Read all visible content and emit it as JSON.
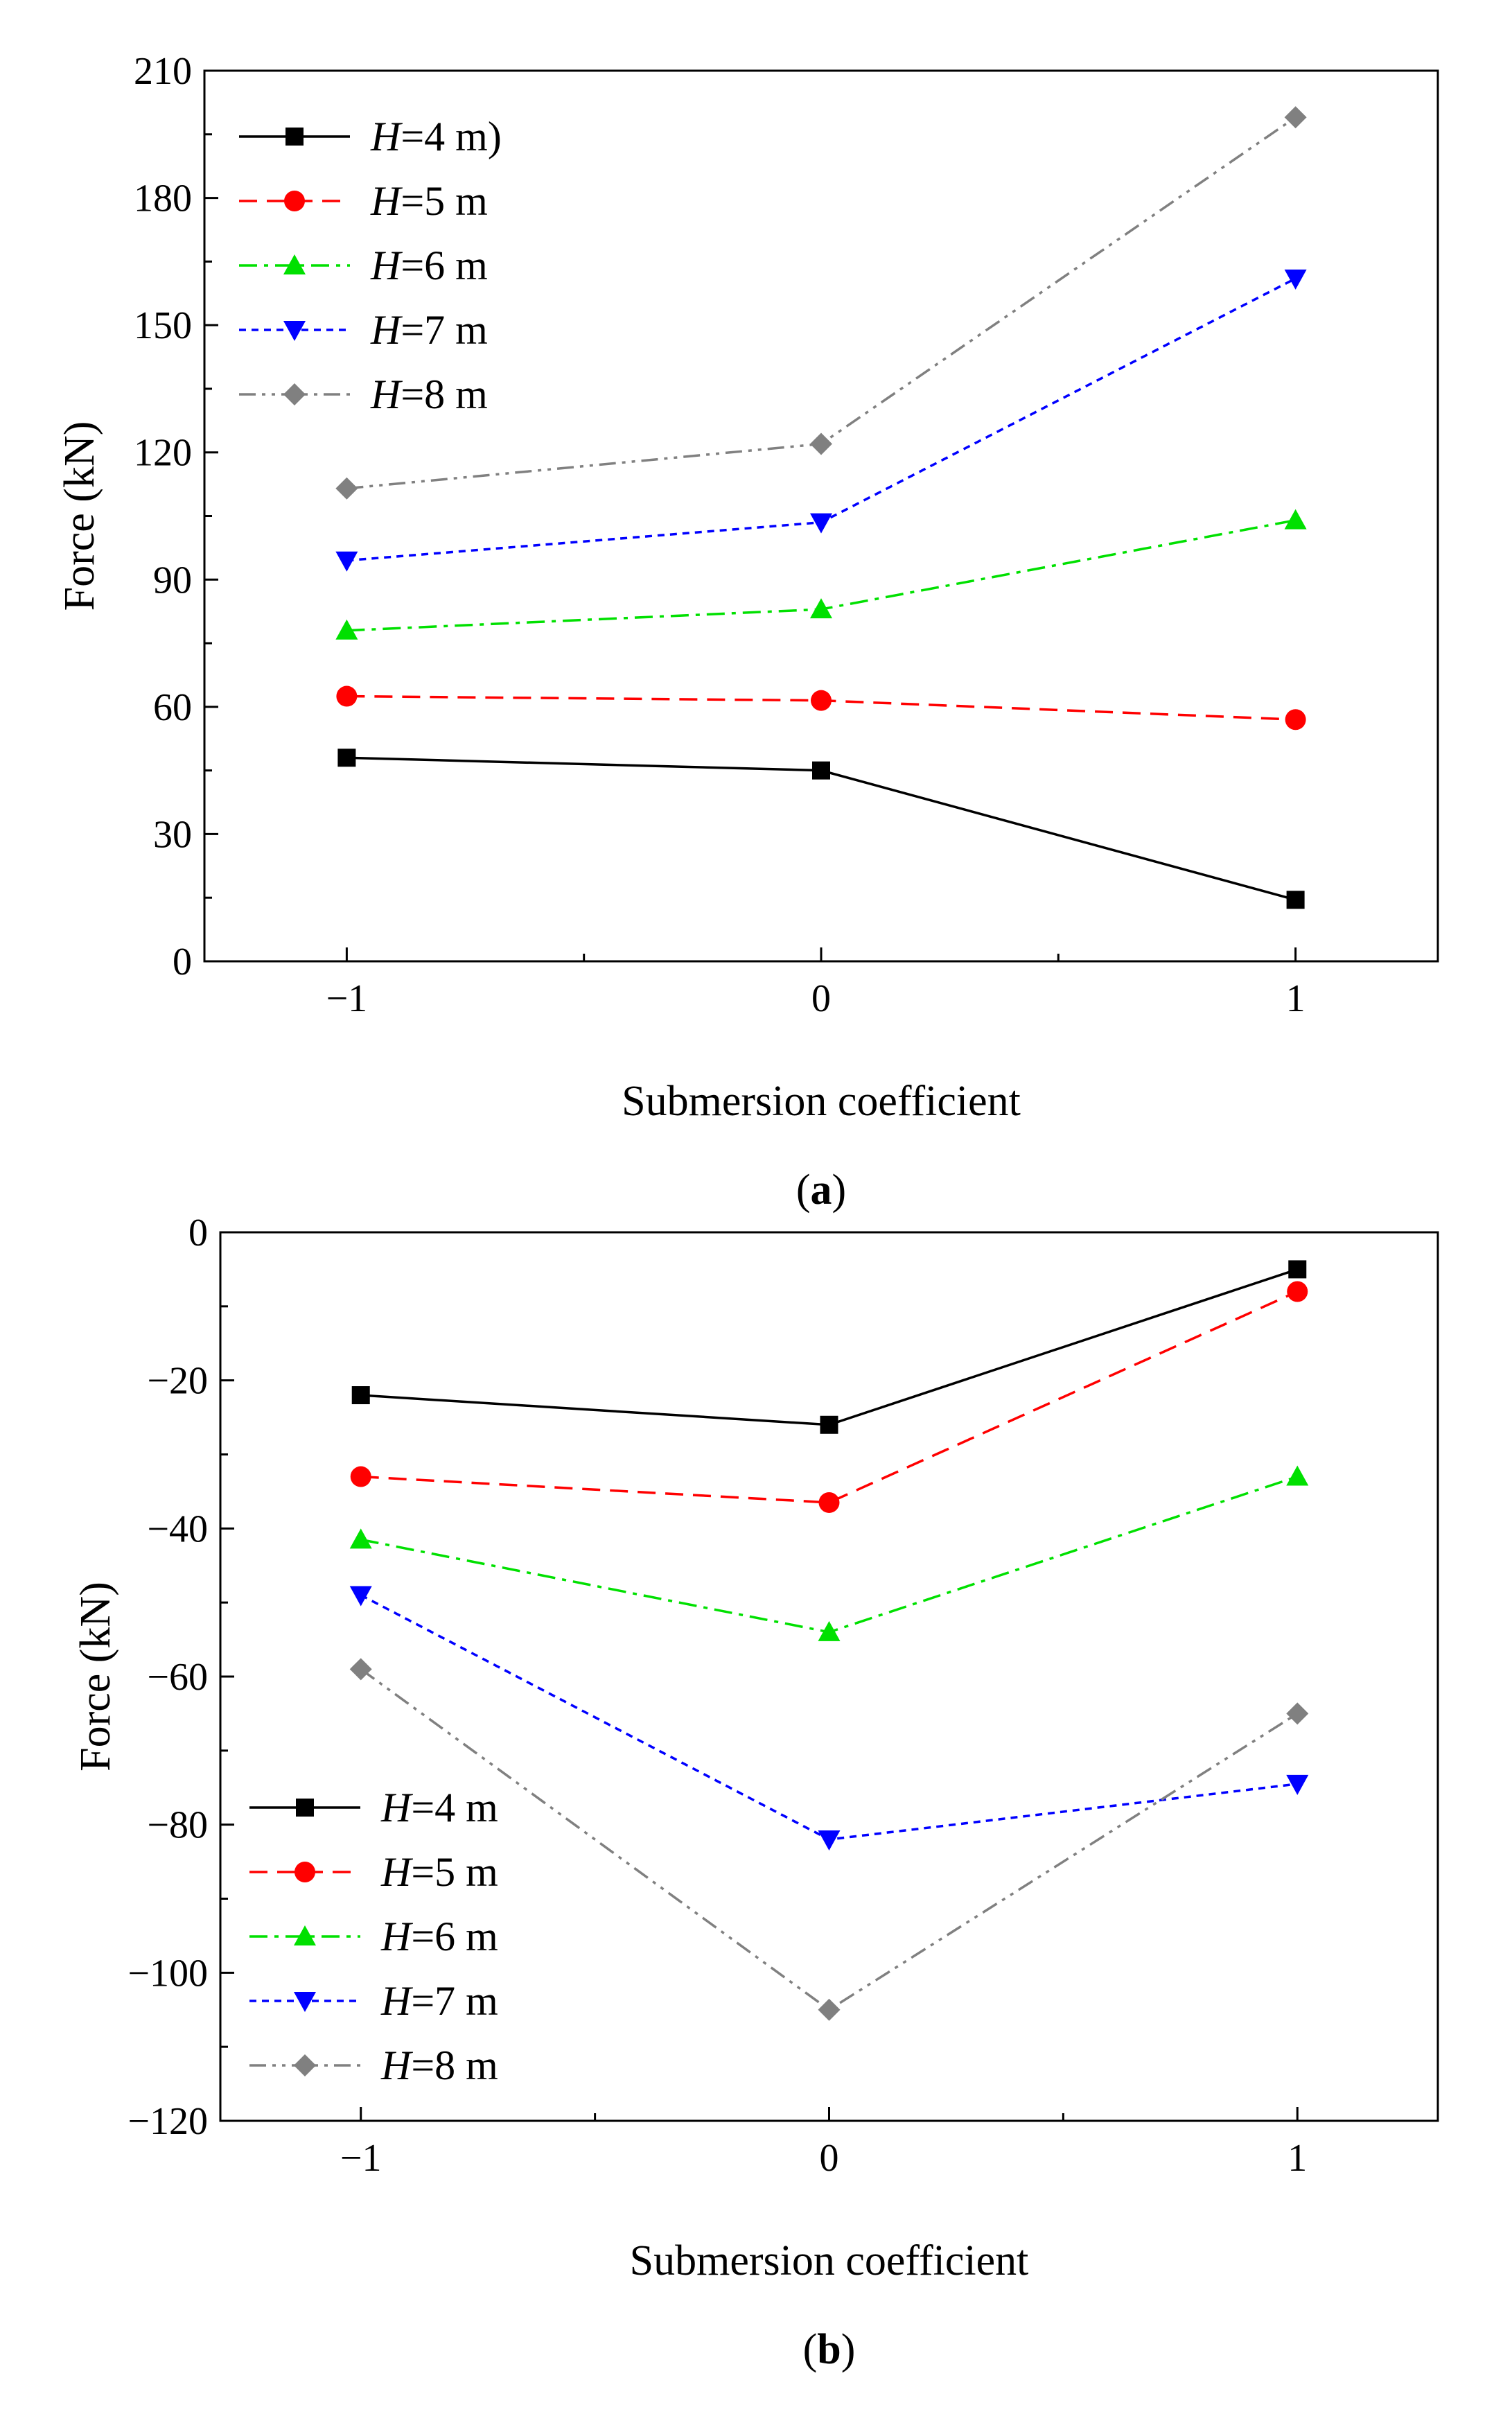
{
  "chart_data": [
    {
      "type": "line",
      "panel_label": "a",
      "xlabel": "Submersion coefficient",
      "ylabel": "Force (kN)",
      "x": [
        -1,
        0,
        1
      ],
      "xticks": [
        -1,
        0,
        1
      ],
      "xtick_labels": [
        "−1",
        "0",
        "1"
      ],
      "xlim": [
        -1.3,
        1.3
      ],
      "ylim": [
        0,
        210
      ],
      "yticks": [
        0,
        30,
        60,
        90,
        120,
        150,
        180,
        210
      ],
      "ytick_labels": [
        "0",
        "30",
        "60",
        "90",
        "120",
        "150",
        "180",
        "210"
      ],
      "grid": false,
      "legend_position": "top-left",
      "series": [
        {
          "name_italic": "H",
          "name_rest": "=4 m)",
          "color": "#000000",
          "marker": "square",
          "dash": "solid",
          "values": [
            48,
            45,
            14.5
          ]
        },
        {
          "name_italic": "H",
          "name_rest": "=5 m",
          "color": "#ff0000",
          "marker": "circle",
          "dash": "dash",
          "values": [
            62.5,
            61.5,
            57
          ]
        },
        {
          "name_italic": "H",
          "name_rest": "=6 m",
          "color": "#00e000",
          "marker": "triangle-up",
          "dash": "dashdot",
          "values": [
            78,
            83,
            104
          ]
        },
        {
          "name_italic": "H",
          "name_rest": "=7 m",
          "color": "#0000ff",
          "marker": "triangle-down",
          "dash": "dot",
          "values": [
            94.5,
            103.5,
            161
          ]
        },
        {
          "name_italic": "H",
          "name_rest": "=8 m",
          "color": "#808080",
          "marker": "diamond",
          "dash": "dashdotdot",
          "values": [
            111.5,
            122,
            199
          ]
        }
      ]
    },
    {
      "type": "line",
      "panel_label": "b",
      "xlabel": "Submersion coefficient",
      "ylabel": "Force (kN)",
      "x": [
        -1,
        0,
        1
      ],
      "xticks": [
        -1,
        0,
        1
      ],
      "xtick_labels": [
        "−1",
        "0",
        "1"
      ],
      "xlim": [
        -1.3,
        1.3
      ],
      "ylim": [
        -120,
        0
      ],
      "yticks": [
        -120,
        -100,
        -80,
        -60,
        -40,
        -20,
        0
      ],
      "ytick_labels": [
        "−120",
        "−100",
        "−80",
        "−60",
        "−40",
        "−20",
        "0"
      ],
      "grid": false,
      "legend_position": "bottom-left",
      "series": [
        {
          "name_italic": "H",
          "name_rest": "=4 m",
          "color": "#000000",
          "marker": "square",
          "dash": "solid",
          "values": [
            -22,
            -26,
            -5
          ]
        },
        {
          "name_italic": "H",
          "name_rest": "=5 m",
          "color": "#ff0000",
          "marker": "circle",
          "dash": "dash",
          "values": [
            -33,
            -36.5,
            -8
          ]
        },
        {
          "name_italic": "H",
          "name_rest": "=6 m",
          "color": "#00e000",
          "marker": "triangle-up",
          "dash": "dashdot",
          "values": [
            -41.5,
            -54,
            -33
          ]
        },
        {
          "name_italic": "H",
          "name_rest": "=7 m",
          "color": "#0000ff",
          "marker": "triangle-down",
          "dash": "dot",
          "values": [
            -49,
            -82,
            -74.5
          ]
        },
        {
          "name_italic": "H",
          "name_rest": "=8 m",
          "color": "#808080",
          "marker": "diamond",
          "dash": "dashdotdot",
          "values": [
            -59,
            -105,
            -65
          ]
        }
      ]
    }
  ]
}
